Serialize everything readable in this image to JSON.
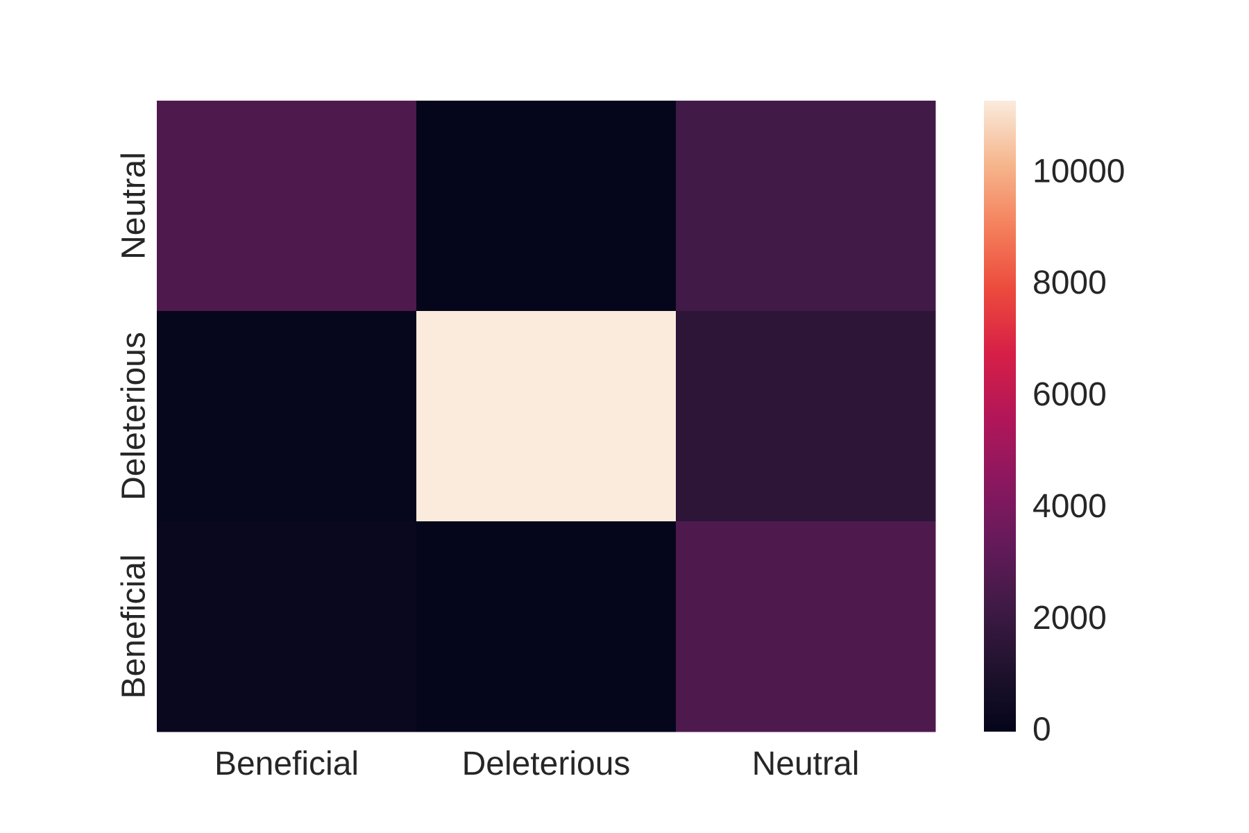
{
  "chart_data": {
    "type": "heatmap",
    "title": "",
    "xlabel": "",
    "ylabel": "",
    "x_categories": [
      "Beneficial",
      "Deleterious",
      "Neutral"
    ],
    "y_categories_top_to_bottom": [
      "Neutral",
      "Deleterious",
      "Beneficial"
    ],
    "values_top_to_bottom": [
      [
        2700,
        60,
        2300
      ],
      [
        100,
        11300,
        1600
      ],
      [
        250,
        80,
        2700
      ]
    ],
    "colorbar": {
      "min": 0,
      "max": 11300,
      "ticks": [
        0,
        2000,
        4000,
        6000,
        8000,
        10000
      ],
      "colormap": "rocket"
    },
    "grid": false
  }
}
